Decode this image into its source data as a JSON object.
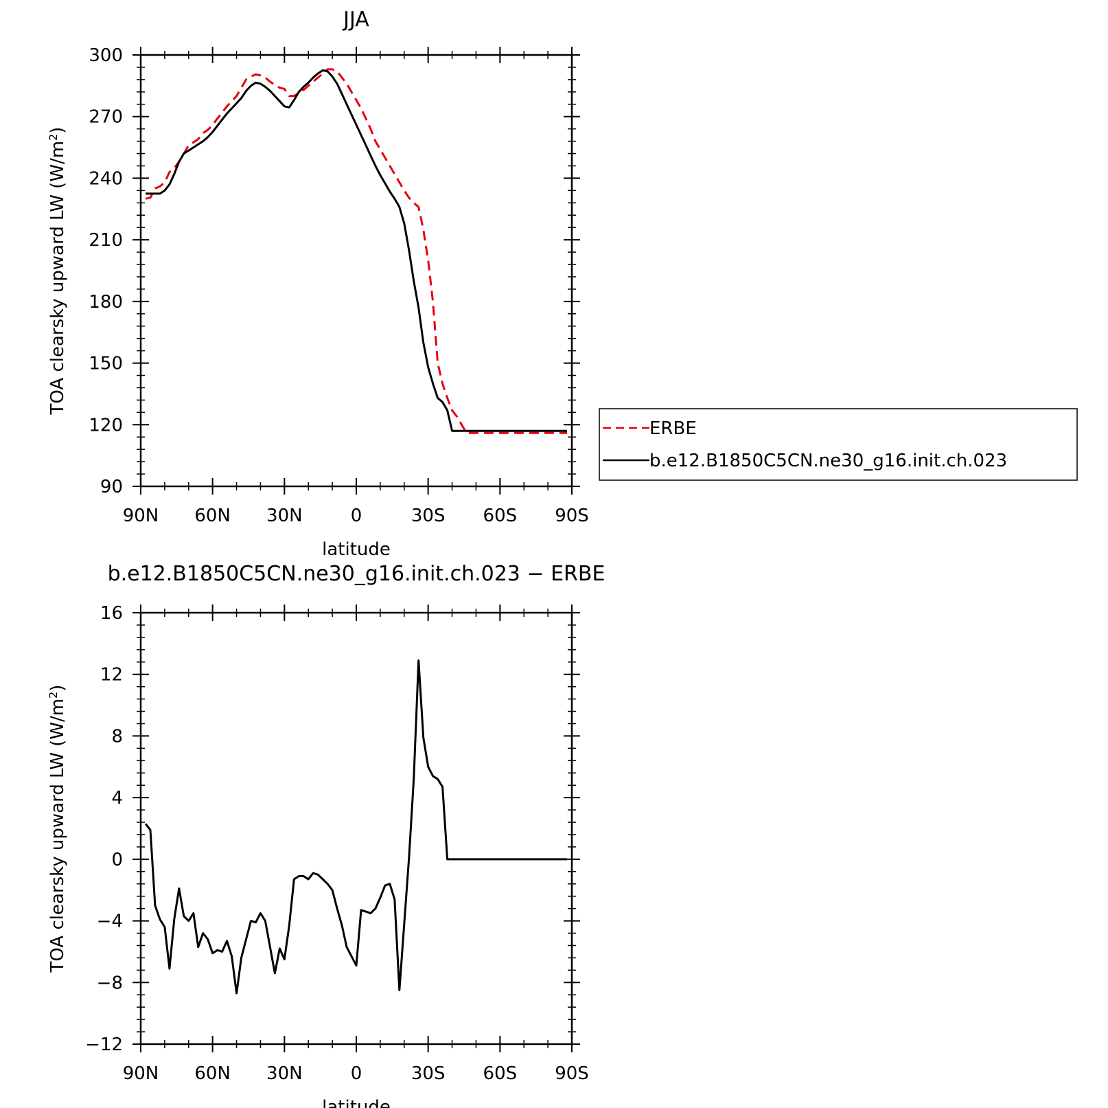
{
  "chart_data": [
    {
      "type": "line",
      "title": "JJA",
      "xlabel": "latitude",
      "ylabel": "TOA clearsky upward LW (W/m²)",
      "ylabel_main": "TOA clearsky upward LW (W/m",
      "ylabel_sup": "2",
      "ylabel_end": ")",
      "xlim": [
        90,
        -90
      ],
      "ylim": [
        90,
        300
      ],
      "x_ticks": [
        90,
        60,
        30,
        0,
        -30,
        -60,
        -90
      ],
      "x_tick_labels": [
        "90N",
        "60N",
        "30N",
        "0",
        "30S",
        "60S",
        "90S"
      ],
      "y_ticks": [
        90,
        120,
        150,
        180,
        210,
        240,
        270,
        300
      ],
      "y_tick_labels": [
        "90",
        "120",
        "150",
        "180",
        "210",
        "240",
        "270",
        "300"
      ],
      "legend_position": "right",
      "series": [
        {
          "name": "ERBE",
          "color": "#e8000b",
          "dash": "dashed",
          "x": [
            88,
            86,
            84,
            82,
            80,
            78,
            76,
            74,
            72,
            70,
            68,
            66,
            64,
            62,
            60,
            58,
            56,
            54,
            52,
            50,
            48,
            46,
            44,
            42,
            40,
            38,
            36,
            34,
            32,
            30,
            28,
            26,
            24,
            22,
            20,
            18,
            16,
            14,
            12,
            10,
            8,
            6,
            4,
            2,
            0,
            -2,
            -4,
            -6,
            -8,
            -10,
            -12,
            -14,
            -16,
            -18,
            -20,
            -22,
            -24,
            -26,
            -28,
            -30,
            -32,
            -34,
            -36,
            -38,
            -40,
            -42,
            -44,
            -46,
            -48,
            -50,
            -52,
            -54,
            -56,
            -58,
            -60,
            -62,
            -64,
            -66,
            -68,
            -70,
            -72,
            -74,
            -76,
            -78,
            -80,
            -82,
            -84,
            -86,
            -88
          ],
          "values": [
            230,
            230.5,
            235,
            236,
            238,
            243,
            245,
            248,
            252,
            256,
            257.5,
            259,
            262,
            263.5,
            266,
            269,
            272,
            275,
            277.5,
            280,
            284,
            288,
            289.5,
            290.5,
            290,
            289,
            287,
            285.5,
            284,
            283.5,
            280,
            280,
            281.5,
            283,
            285,
            287,
            289,
            291,
            293,
            293,
            292,
            289,
            286,
            282,
            278,
            274,
            269,
            264,
            258,
            254,
            250,
            246,
            242,
            238,
            234,
            230.5,
            228,
            226,
            215,
            200,
            180,
            150,
            140,
            133,
            127,
            124,
            120,
            116,
            116,
            116,
            116,
            116,
            116,
            116,
            116,
            116,
            116,
            116,
            116,
            116,
            116,
            116,
            116,
            116,
            116,
            116,
            116,
            116,
            116
          ]
        },
        {
          "name": "b.e12.B1850C5CN.ne30_g16.init.ch.023",
          "color": "#000000",
          "dash": "solid",
          "x": [
            88,
            86,
            84,
            82,
            80,
            78,
            76,
            74,
            72,
            70,
            68,
            66,
            64,
            62,
            60,
            58,
            56,
            54,
            52,
            50,
            48,
            46,
            44,
            42,
            40,
            38,
            36,
            34,
            32,
            30,
            28,
            26,
            24,
            22,
            20,
            18,
            16,
            14,
            12,
            10,
            8,
            6,
            4,
            2,
            0,
            -2,
            -4,
            -6,
            -8,
            -10,
            -12,
            -14,
            -16,
            -18,
            -20,
            -22,
            -24,
            -26,
            -28,
            -30,
            -32,
            -34,
            -36,
            -38,
            -40,
            -42,
            -44,
            -46,
            -48,
            -50,
            -52,
            -54,
            -56,
            -58,
            -60,
            -62,
            -64,
            -66,
            -68,
            -70,
            -72,
            -74,
            -76,
            -78,
            -80,
            -82,
            -84,
            -86,
            -88
          ],
          "values": [
            232.5,
            232.5,
            232.5,
            232.5,
            234,
            237,
            242,
            248,
            252,
            253.5,
            255,
            256.5,
            258,
            260,
            262.5,
            265.5,
            268.5,
            271.5,
            274,
            276.5,
            279,
            282.5,
            285,
            286.5,
            286,
            284.5,
            282.5,
            280,
            277.5,
            275,
            274.5,
            278,
            282,
            284.5,
            286.5,
            289,
            291,
            292.5,
            292,
            289.5,
            286,
            281,
            276,
            271,
            266,
            261,
            256,
            251,
            246,
            241.5,
            237.5,
            233.5,
            230,
            226,
            218,
            205,
            190,
            177,
            160,
            148,
            140,
            133,
            131,
            127,
            117,
            117,
            117,
            117,
            117,
            117,
            117,
            117,
            117,
            117,
            117,
            117,
            117,
            117,
            117,
            117,
            117,
            117,
            117,
            117,
            117,
            117,
            117,
            117,
            117
          ]
        }
      ]
    },
    {
      "type": "line",
      "title": "b.e12.B1850C5CN.ne30_g16.init.ch.023 − ERBE",
      "xlabel": "latitude",
      "ylabel": "TOA clearsky upward LW (W/m²)",
      "ylabel_main": "TOA clearsky upward LW (W/m",
      "ylabel_sup": "2",
      "ylabel_end": ")",
      "xlim": [
        90,
        -90
      ],
      "ylim": [
        -12,
        16
      ],
      "x_ticks": [
        90,
        60,
        30,
        0,
        -30,
        -60,
        -90
      ],
      "x_tick_labels": [
        "90N",
        "60N",
        "30N",
        "0",
        "30S",
        "60S",
        "90S"
      ],
      "y_ticks": [
        -12,
        -8,
        -4,
        0,
        4,
        8,
        12,
        16
      ],
      "y_tick_labels": [
        "−12",
        "−8",
        "−4",
        "0",
        "4",
        "8",
        "12",
        "16"
      ],
      "series": [
        {
          "color": "#000000",
          "dash": "solid",
          "x": [
            88,
            86,
            84,
            82,
            80,
            78,
            76,
            74,
            72,
            70,
            68,
            66,
            64,
            62,
            60,
            58,
            56,
            54,
            52,
            50,
            48,
            46,
            44,
            42,
            40,
            38,
            36,
            34,
            32,
            30,
            28,
            26,
            24,
            22,
            20,
            18,
            16,
            14,
            12,
            10,
            8,
            6,
            4,
            2,
            0,
            -2,
            -4,
            -6,
            -8,
            -10,
            -12,
            -14,
            -16,
            -18,
            -20,
            -22,
            -24,
            -26,
            -28,
            -30,
            -32,
            -34,
            -36,
            -38,
            -40,
            -42,
            -44,
            -46,
            -48,
            -50,
            -52,
            -54,
            -56,
            -58,
            -60,
            -62,
            -64,
            -66,
            -68,
            -70,
            -72,
            -74,
            -76,
            -78,
            -80,
            -82,
            -84,
            -86,
            -88
          ],
          "values": [
            2.3,
            1.9,
            -3.0,
            -3.9,
            -4.4,
            -7.1,
            -3.9,
            -1.9,
            -3.7,
            -4.0,
            -3.5,
            -5.7,
            -4.8,
            -5.2,
            -6.1,
            -5.9,
            -6.0,
            -5.3,
            -6.3,
            -8.7,
            -6.4,
            -5.2,
            -4.0,
            -4.1,
            -3.5,
            -4.0,
            -5.7,
            -7.4,
            -5.8,
            -6.5,
            -4.3,
            -1.3,
            -1.1,
            -1.1,
            -1.3,
            -0.9,
            -1.0,
            -1.3,
            -1.6,
            -2.0,
            -3.2,
            -4.3,
            -5.7,
            -6.3,
            -6.9,
            -3.3,
            -3.4,
            -3.5,
            -3.2,
            -2.5,
            -1.7,
            -1.6,
            -2.6,
            -8.5,
            -4.2,
            0.1,
            5.2,
            12.9,
            7.9,
            6.0,
            5.4,
            5.2,
            4.7,
            0.0,
            0.0,
            0.0,
            0.0,
            0.0,
            0.0,
            0.0,
            0.0,
            0.0,
            0.0,
            0.0,
            0.0,
            0.0,
            0.0,
            0.0,
            0.0,
            0.0,
            0.0,
            0.0,
            0.0,
            0.0,
            0.0,
            0.0,
            0.0,
            0.0,
            0.0
          ]
        }
      ]
    }
  ]
}
